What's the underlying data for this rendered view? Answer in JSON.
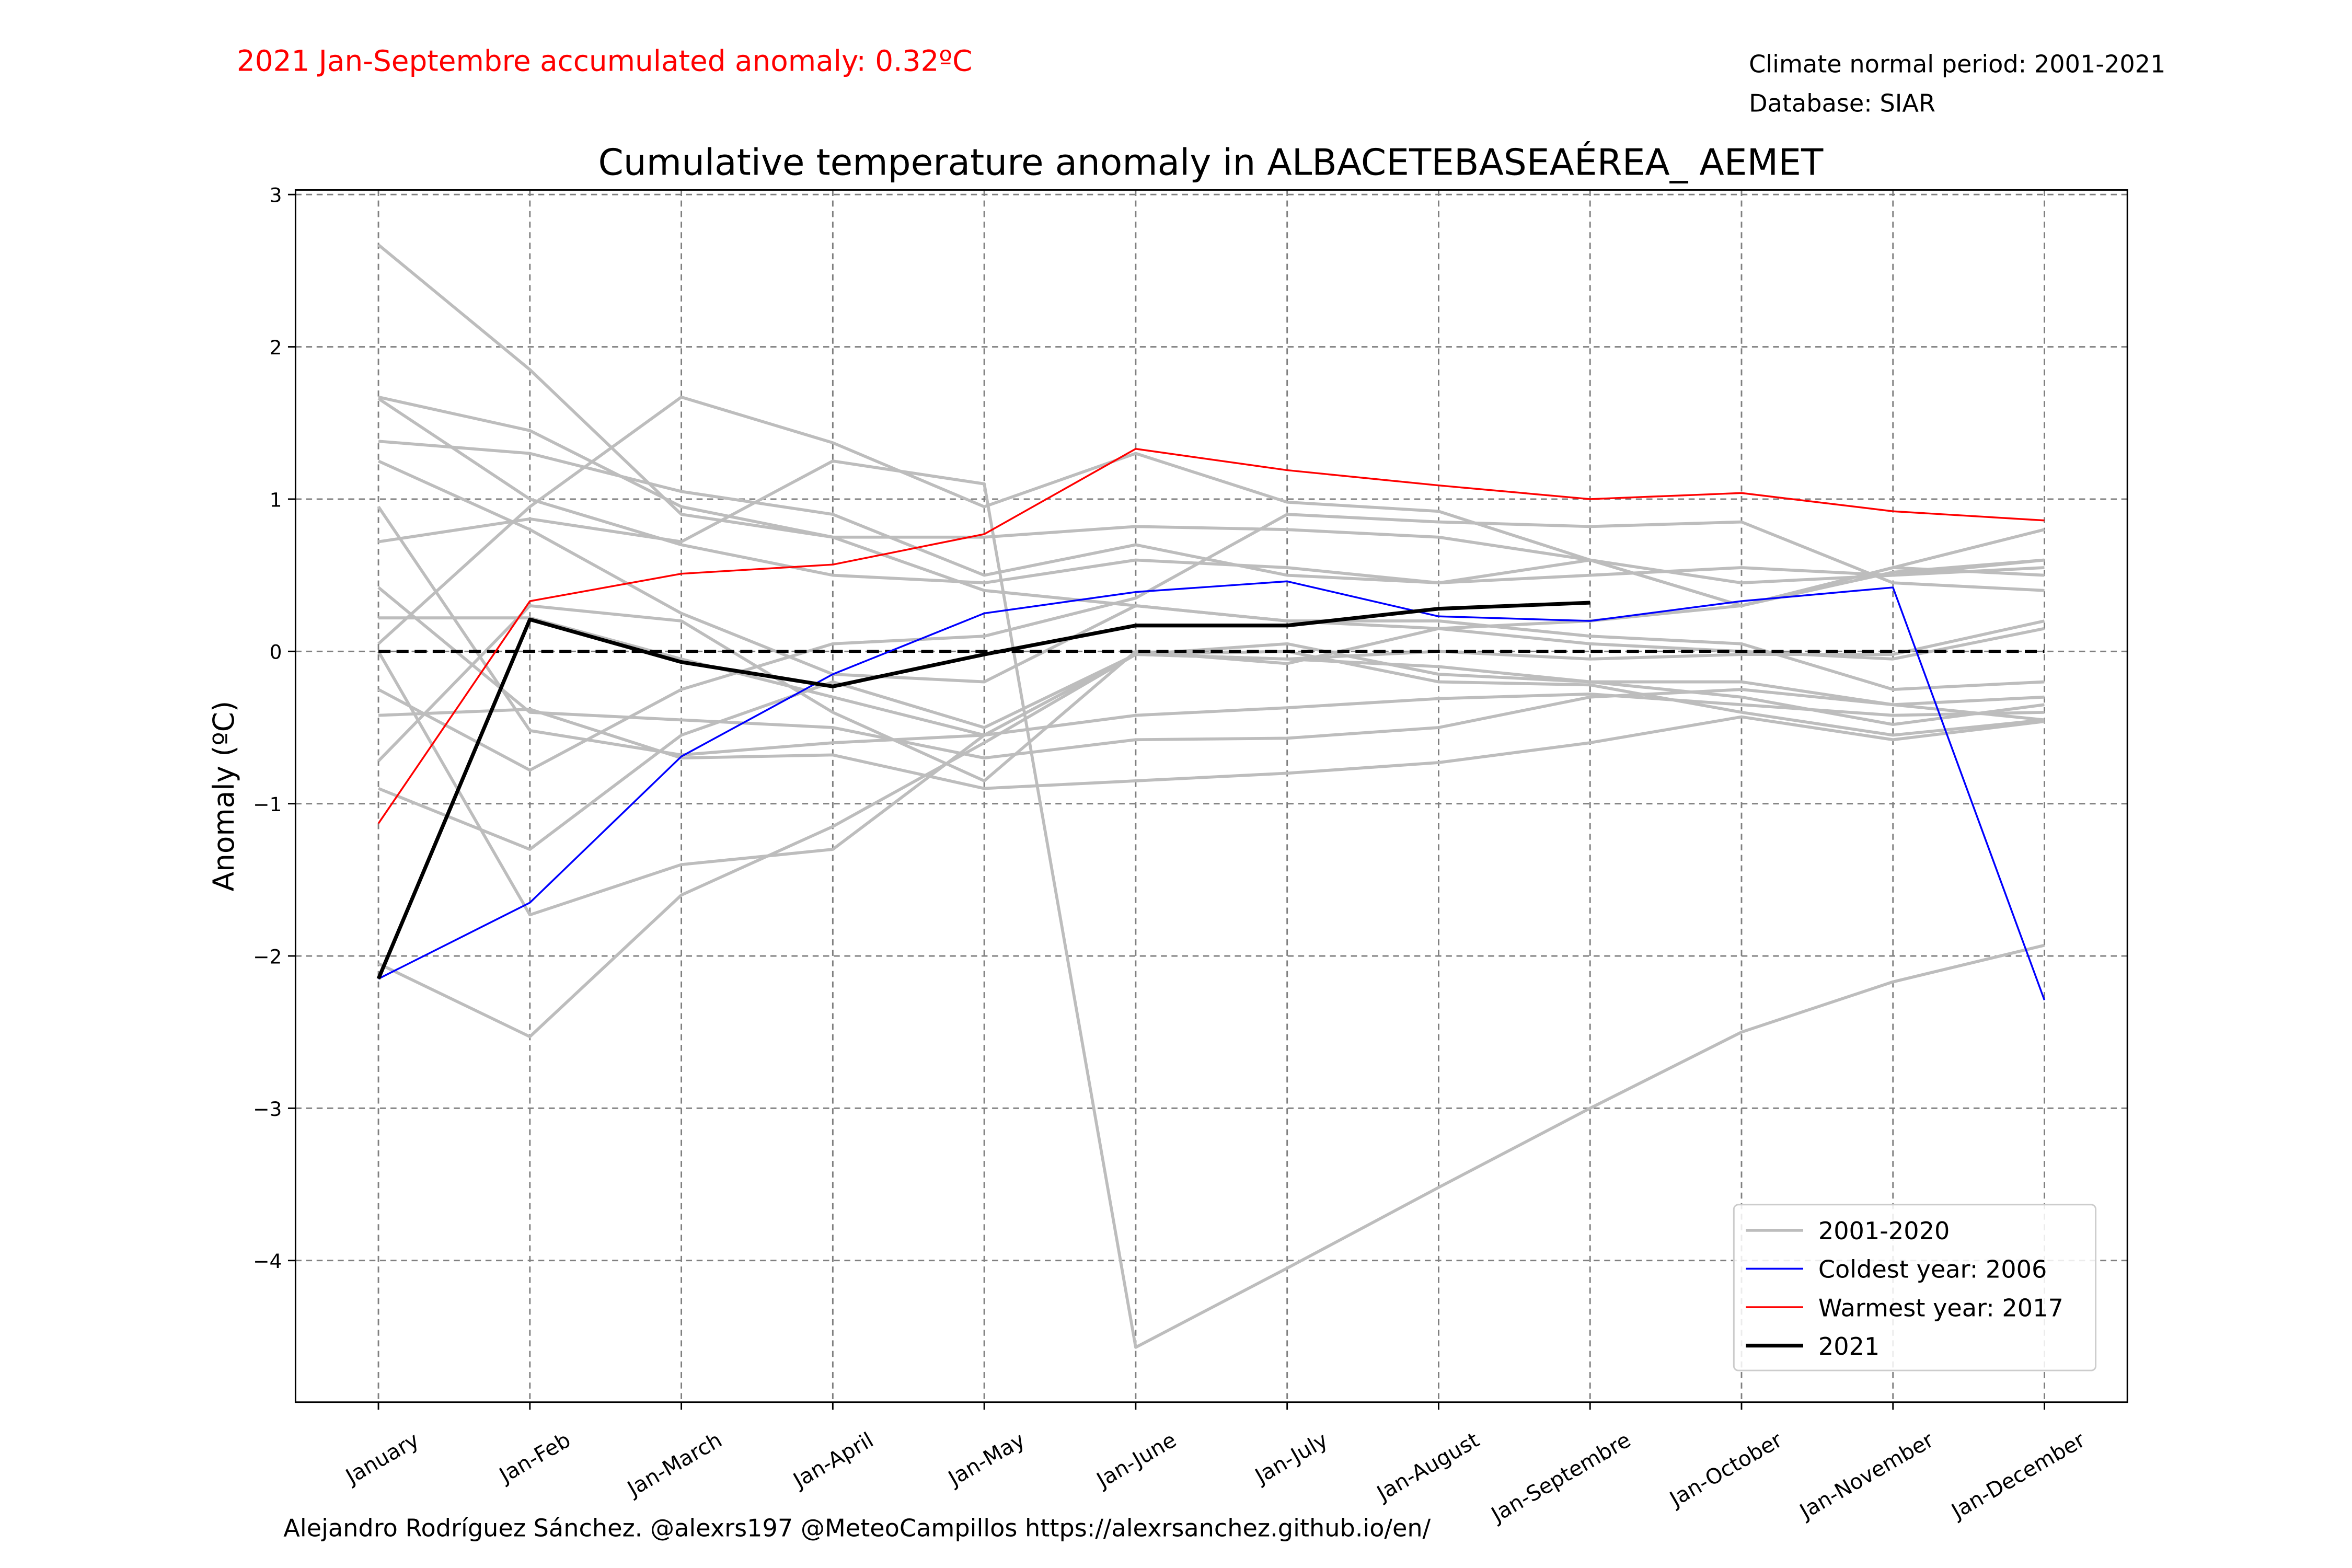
{
  "chart_data": {
    "type": "line",
    "title": "Cumulative temperature anomaly in ALBACETEBASEAÉREA_ AEMET",
    "annotation": "2021 Jan-Septembre accumulated anomaly: 0.32ºC",
    "info": [
      "Climate normal period: 2001-2021",
      "Database: SIAR"
    ],
    "footer": "Alejandro Rodríguez Sánchez. @alexrs197 @MeteoCampillos   https://alexrsanchez.github.io/en/",
    "ylabel": "Anomaly (ºC)",
    "categories": [
      "January",
      "Jan-Feb",
      "Jan-March",
      "Jan-April",
      "Jan-May",
      "Jan-June",
      "Jan-July",
      "Jan-August",
      "Jan-Septembre",
      "Jan-October",
      "Jan-November",
      "Jan-December"
    ],
    "ylim": [
      -4.93,
      3.03
    ],
    "yticks": [
      {
        "value": -4,
        "label": "−4"
      },
      {
        "value": -3,
        "label": "−3"
      },
      {
        "value": -2,
        "label": "−2"
      },
      {
        "value": -1,
        "label": "−1"
      },
      0,
      1,
      2,
      3
    ],
    "grid": true,
    "hline": 0,
    "legend": "lower right",
    "background_series": {
      "name": "2001-2020",
      "color": "#bdbdbd",
      "lines": [
        [
          2.67,
          1.85,
          0.9,
          0.75,
          0.4,
          0.3,
          0.2,
          0.15,
          0.05,
          0.0,
          -0.05,
          0.15
        ],
        [
          1.66,
          1.0,
          0.7,
          0.5,
          0.45,
          0.6,
          0.55,
          0.45,
          0.5,
          0.55,
          0.5,
          0.6
        ],
        [
          1.38,
          1.3,
          1.05,
          0.9,
          0.5,
          0.7,
          0.5,
          0.45,
          0.6,
          0.3,
          0.55,
          0.8
        ],
        [
          1.25,
          0.8,
          0.25,
          -0.15,
          -0.2,
          0.3,
          0.2,
          0.2,
          0.1,
          0.05,
          -0.25,
          -0.2
        ],
        [
          0.72,
          0.87,
          0.72,
          1.25,
          1.1,
          -4.57,
          -4.05,
          -3.52,
          -3.0,
          -2.5,
          -2.17,
          -1.93
        ],
        [
          0.95,
          -0.52,
          -0.68,
          -0.6,
          -0.55,
          -0.02,
          -0.05,
          -0.1,
          -0.2,
          -0.3,
          -0.48,
          -0.35
        ],
        [
          0.42,
          -0.4,
          -0.45,
          -0.5,
          -0.7,
          -0.58,
          -0.57,
          -0.5,
          -0.3,
          -0.25,
          -0.35,
          -0.45
        ],
        [
          0.22,
          0.22,
          -0.05,
          -0.3,
          -0.55,
          -0.42,
          -0.37,
          -0.31,
          -0.28,
          -0.35,
          -0.42,
          -0.4
        ],
        [
          -0.25,
          -0.78,
          -0.25,
          0.05,
          0.1,
          0.35,
          0.9,
          0.85,
          0.82,
          0.85,
          0.45,
          0.4
        ],
        [
          -0.42,
          -0.38,
          -0.7,
          -0.68,
          -0.9,
          -0.85,
          -0.8,
          -0.73,
          -0.6,
          -0.43,
          -0.58,
          -0.46
        ],
        [
          -0.72,
          0.3,
          0.2,
          -0.4,
          -0.85,
          0.0,
          -0.08,
          0.15,
          0.2,
          0.3,
          0.55,
          0.5
        ],
        [
          -0.9,
          -1.3,
          -0.55,
          -0.2,
          -0.5,
          -0.02,
          0.0,
          -0.2,
          -0.22,
          -0.4,
          -0.55,
          -0.45
        ],
        [
          -2.05,
          -2.53,
          -1.6,
          -1.15,
          -0.6,
          -0.02,
          -0.05,
          0.0,
          -0.05,
          -0.02,
          -0.02,
          0.2
        ],
        [
          0.0,
          -1.73,
          -1.4,
          -1.3,
          -0.55,
          -0.02,
          0.05,
          -0.15,
          -0.2,
          -0.2,
          -0.35,
          -0.3
        ],
        [
          1.67,
          1.45,
          0.95,
          0.75,
          0.75,
          0.82,
          0.8,
          0.75,
          0.6,
          0.45,
          0.5,
          0.55
        ],
        [
          0.05,
          0.95,
          1.67,
          1.37,
          0.95,
          1.3,
          0.98,
          0.92,
          0.6,
          0.3,
          0.52,
          0.6
        ]
      ]
    },
    "series": [
      {
        "name": "Coldest year: 2006",
        "color": "#0000ff",
        "width": 1.2,
        "values": [
          -2.15,
          -1.65,
          -0.69,
          -0.15,
          0.25,
          0.39,
          0.46,
          0.23,
          0.2,
          0.33,
          0.42,
          -2.29
        ]
      },
      {
        "name": "Warmest year: 2017",
        "color": "#ff0000",
        "width": 1.2,
        "values": [
          -1.13,
          0.33,
          0.51,
          0.57,
          0.77,
          1.33,
          1.19,
          1.09,
          1.0,
          1.04,
          0.92,
          0.86
        ]
      },
      {
        "name": "2021",
        "color": "#000000",
        "width": 2.5,
        "values": [
          -2.15,
          0.21,
          -0.07,
          -0.23,
          -0.02,
          0.17,
          0.17,
          0.28,
          0.32,
          null,
          null,
          null
        ]
      }
    ]
  }
}
